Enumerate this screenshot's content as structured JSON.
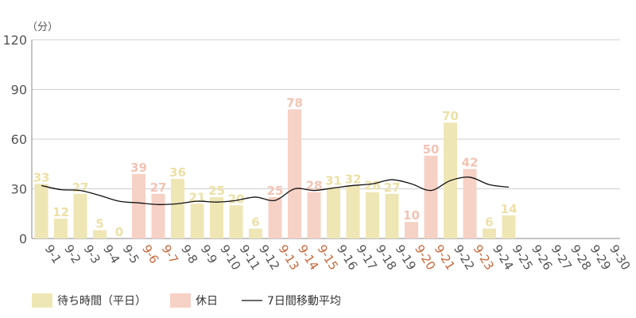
{
  "chart_data": {
    "type": "bar",
    "unit_label": "（分）",
    "yticks": [
      0,
      30,
      60,
      90,
      120
    ],
    "ylim": [
      0,
      120
    ],
    "grid": true,
    "legend_position": "bottom-left",
    "categories": [
      "9-1",
      "9-2",
      "9-3",
      "9-4",
      "9-5",
      "9-6",
      "9-7",
      "9-8",
      "9-9",
      "9-10",
      "9-11",
      "9-12",
      "9-13",
      "9-14",
      "9-15",
      "9-16",
      "9-17",
      "9-18",
      "9-19",
      "9-20",
      "9-21",
      "9-22",
      "9-23",
      "9-24",
      "9-25",
      "9-26",
      "9-27",
      "9-28",
      "9-29",
      "9-30"
    ],
    "holiday_categories": [
      "9-6",
      "9-7",
      "9-13",
      "9-14",
      "9-15",
      "9-20",
      "9-21",
      "9-23"
    ],
    "series": [
      {
        "name": "待ち時間（平日）",
        "color": "#efe6b5",
        "label_color": "#ece0a6",
        "values": [
          33,
          12,
          27,
          5,
          0,
          null,
          null,
          36,
          21,
          25,
          20,
          6,
          null,
          null,
          null,
          31,
          32,
          28,
          27,
          null,
          null,
          70,
          null,
          6,
          14,
          null,
          null,
          null,
          null,
          null
        ]
      },
      {
        "name": "休日",
        "color": "#f6d1c5",
        "label_color": "#f3c3b3",
        "values": [
          null,
          null,
          null,
          null,
          null,
          39,
          27,
          null,
          null,
          null,
          null,
          null,
          25,
          78,
          28,
          null,
          null,
          null,
          null,
          10,
          50,
          null,
          42,
          null,
          null,
          null,
          null,
          null,
          null,
          null
        ]
      },
      {
        "name": "7日間移動平均",
        "type": "line",
        "color": "#111111",
        "values": [
          32,
          29.5,
          29,
          26,
          22.5,
          21.5,
          20.5,
          21,
          22.5,
          22,
          23,
          25,
          23,
          30,
          29,
          30.5,
          32,
          33,
          35.5,
          33,
          29,
          35,
          37,
          32.5,
          31,
          null,
          null,
          null,
          null,
          null
        ]
      }
    ],
    "colors": {
      "axis": "#888888",
      "grid": "#cfcfcf",
      "tick_normal": "#555555",
      "tick_holiday": "#c8673a"
    }
  }
}
